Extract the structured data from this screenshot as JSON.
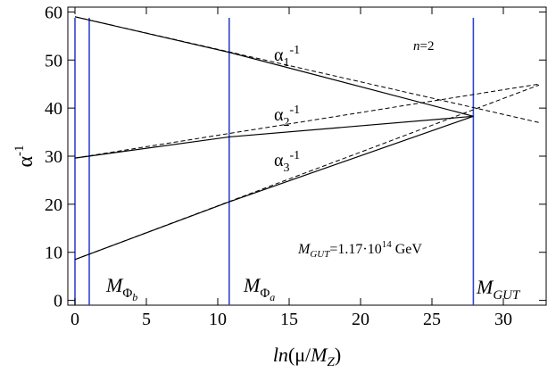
{
  "chart_data": {
    "type": "line",
    "title": "",
    "xlabel": {
      "pre": "ln",
      "mid": "(μ/",
      "var": "M",
      "sub": "Z",
      "post": ")"
    },
    "ylabel": {
      "base": "α",
      "sup": "-1"
    },
    "xlim": [
      -0.5,
      33
    ],
    "ylim": [
      -1,
      61
    ],
    "x_ticks": [
      0,
      5,
      10,
      15,
      20,
      25,
      30
    ],
    "y_ticks": [
      0,
      10,
      20,
      30,
      40,
      50,
      60
    ],
    "grid": false,
    "solid_series": [
      {
        "label": {
          "base": "α",
          "sub": "1",
          "sup": "-1"
        },
        "points": [
          [
            0,
            59.0
          ],
          [
            10.8,
            51.6
          ],
          [
            27.9,
            38.3
          ]
        ]
      },
      {
        "label": {
          "base": "α",
          "sub": "2",
          "sup": "-1"
        },
        "points": [
          [
            0,
            29.6
          ],
          [
            10.8,
            34.0
          ],
          [
            27.9,
            38.3
          ]
        ]
      },
      {
        "label": {
          "base": "α",
          "sub": "3",
          "sup": "-1"
        },
        "points": [
          [
            0,
            8.5
          ],
          [
            10.8,
            20.5
          ],
          [
            27.9,
            38.3
          ]
        ]
      }
    ],
    "dashed_series": [
      {
        "points": [
          [
            0,
            59.0
          ],
          [
            32.5,
            37.0
          ]
        ]
      },
      {
        "points": [
          [
            0,
            29.6
          ],
          [
            32.5,
            45.0
          ]
        ]
      },
      {
        "points": [
          [
            0,
            8.5
          ],
          [
            32.5,
            44.8
          ]
        ]
      }
    ],
    "vertical_lines": [
      {
        "x": 0,
        "label": null
      },
      {
        "x": 1.0,
        "label": {
          "var": "M",
          "sub": "Φ",
          "subsub": "b"
        }
      },
      {
        "x": 10.8,
        "label": {
          "var": "M",
          "sub": "Φ",
          "subsub": "a"
        }
      },
      {
        "x": 27.9,
        "label": {
          "var": "M",
          "sub": "GUT"
        }
      }
    ],
    "annotations": {
      "n": {
        "var": "n",
        "rest": "=2"
      },
      "mgut": {
        "var": "M",
        "sub": "GUT",
        "mid": "=1.17·10",
        "sup": "14",
        "post": " GeV"
      }
    },
    "colors": {
      "vline": "#3344cc",
      "line": "#000000"
    }
  }
}
